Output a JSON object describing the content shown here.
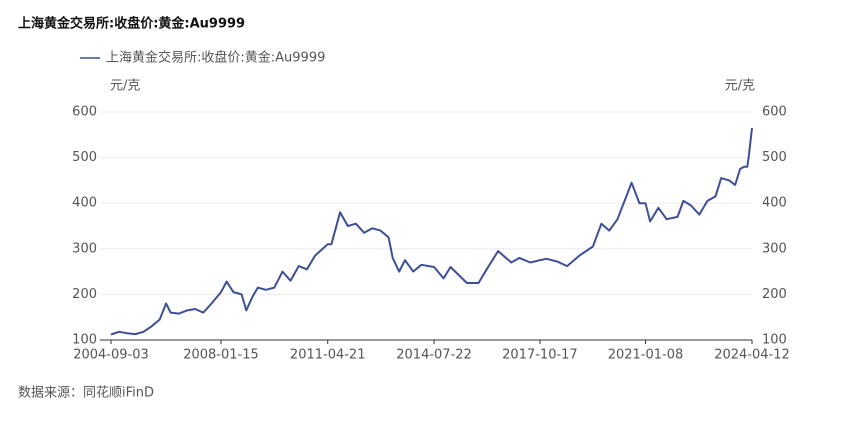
{
  "chart_data": {
    "type": "line",
    "title": "上海黄金交易所:收盘价:黄金:Au9999",
    "y_unit_left": "元/克",
    "y_unit_right": "元/克",
    "source": "数据来源：同花顺iFinD",
    "x": [
      "2004-09-03",
      "2004-12-01",
      "2005-03-01",
      "2005-06-01",
      "2005-09-01",
      "2005-12-01",
      "2006-03-01",
      "2006-05-12",
      "2006-07-01",
      "2006-10-01",
      "2007-01-01",
      "2007-04-01",
      "2007-07-01",
      "2007-10-01",
      "2008-01-15",
      "2008-03-17",
      "2008-06-01",
      "2008-09-01",
      "2008-10-24",
      "2009-01-01",
      "2009-03-01",
      "2009-06-01",
      "2009-09-01",
      "2009-12-02",
      "2010-03-01",
      "2010-06-01",
      "2010-09-01",
      "2010-12-01",
      "2011-04-21",
      "2011-06-01",
      "2011-09-06",
      "2011-12-01",
      "2012-03-01",
      "2012-06-01",
      "2012-09-01",
      "2012-12-01",
      "2013-03-01",
      "2013-04-16",
      "2013-06-28",
      "2013-09-01",
      "2013-12-01",
      "2014-03-01",
      "2014-07-22",
      "2014-11-06",
      "2015-01-22",
      "2015-07-24",
      "2015-12-01",
      "2016-03-01",
      "2016-07-06",
      "2016-12-01",
      "2017-03-01",
      "2017-07-01",
      "2017-10-17",
      "2018-01-01",
      "2018-05-01",
      "2018-08-16",
      "2019-01-01",
      "2019-06-01",
      "2019-09-04",
      "2019-12-01",
      "2020-03-01",
      "2020-08-06",
      "2020-11-01",
      "2021-01-08",
      "2021-03-01",
      "2021-06-01",
      "2021-09-01",
      "2022-01-01",
      "2022-03-08",
      "2022-06-01",
      "2022-09-01",
      "2022-12-01",
      "2023-03-01",
      "2023-05-04",
      "2023-08-01",
      "2023-10-06",
      "2023-12-01",
      "2024-01-15",
      "2024-02-20",
      "2024-03-08",
      "2024-04-12"
    ],
    "series": [
      {
        "name": "上海黄金交易所:收盘价:黄金:Au9999",
        "color": "#3d4f96",
        "values": [
          112,
          118,
          115,
          113,
          118,
          130,
          145,
          180,
          160,
          158,
          165,
          168,
          160,
          180,
          205,
          228,
          205,
          200,
          165,
          195,
          215,
          210,
          215,
          250,
          230,
          262,
          255,
          285,
          310,
          310,
          380,
          350,
          355,
          335,
          345,
          340,
          325,
          280,
          250,
          275,
          250,
          265,
          260,
          235,
          260,
          225,
          225,
          255,
          295,
          270,
          280,
          270,
          275,
          278,
          272,
          262,
          285,
          305,
          355,
          340,
          365,
          445,
          400,
          400,
          360,
          390,
          365,
          370,
          405,
          395,
          375,
          405,
          415,
          455,
          450,
          440,
          475,
          480,
          480,
          505,
          565
        ]
      }
    ],
    "xlim": [
      "2004-09-03",
      "2024-04-12"
    ],
    "xticks": [
      "2004-09-03",
      "2008-01-15",
      "2011-04-21",
      "2014-07-22",
      "2017-10-17",
      "2021-01-08",
      "2024-04-12"
    ],
    "ylim": [
      100,
      600
    ],
    "yticks": [
      100,
      200,
      300,
      400,
      500,
      600
    ],
    "grid": true
  }
}
